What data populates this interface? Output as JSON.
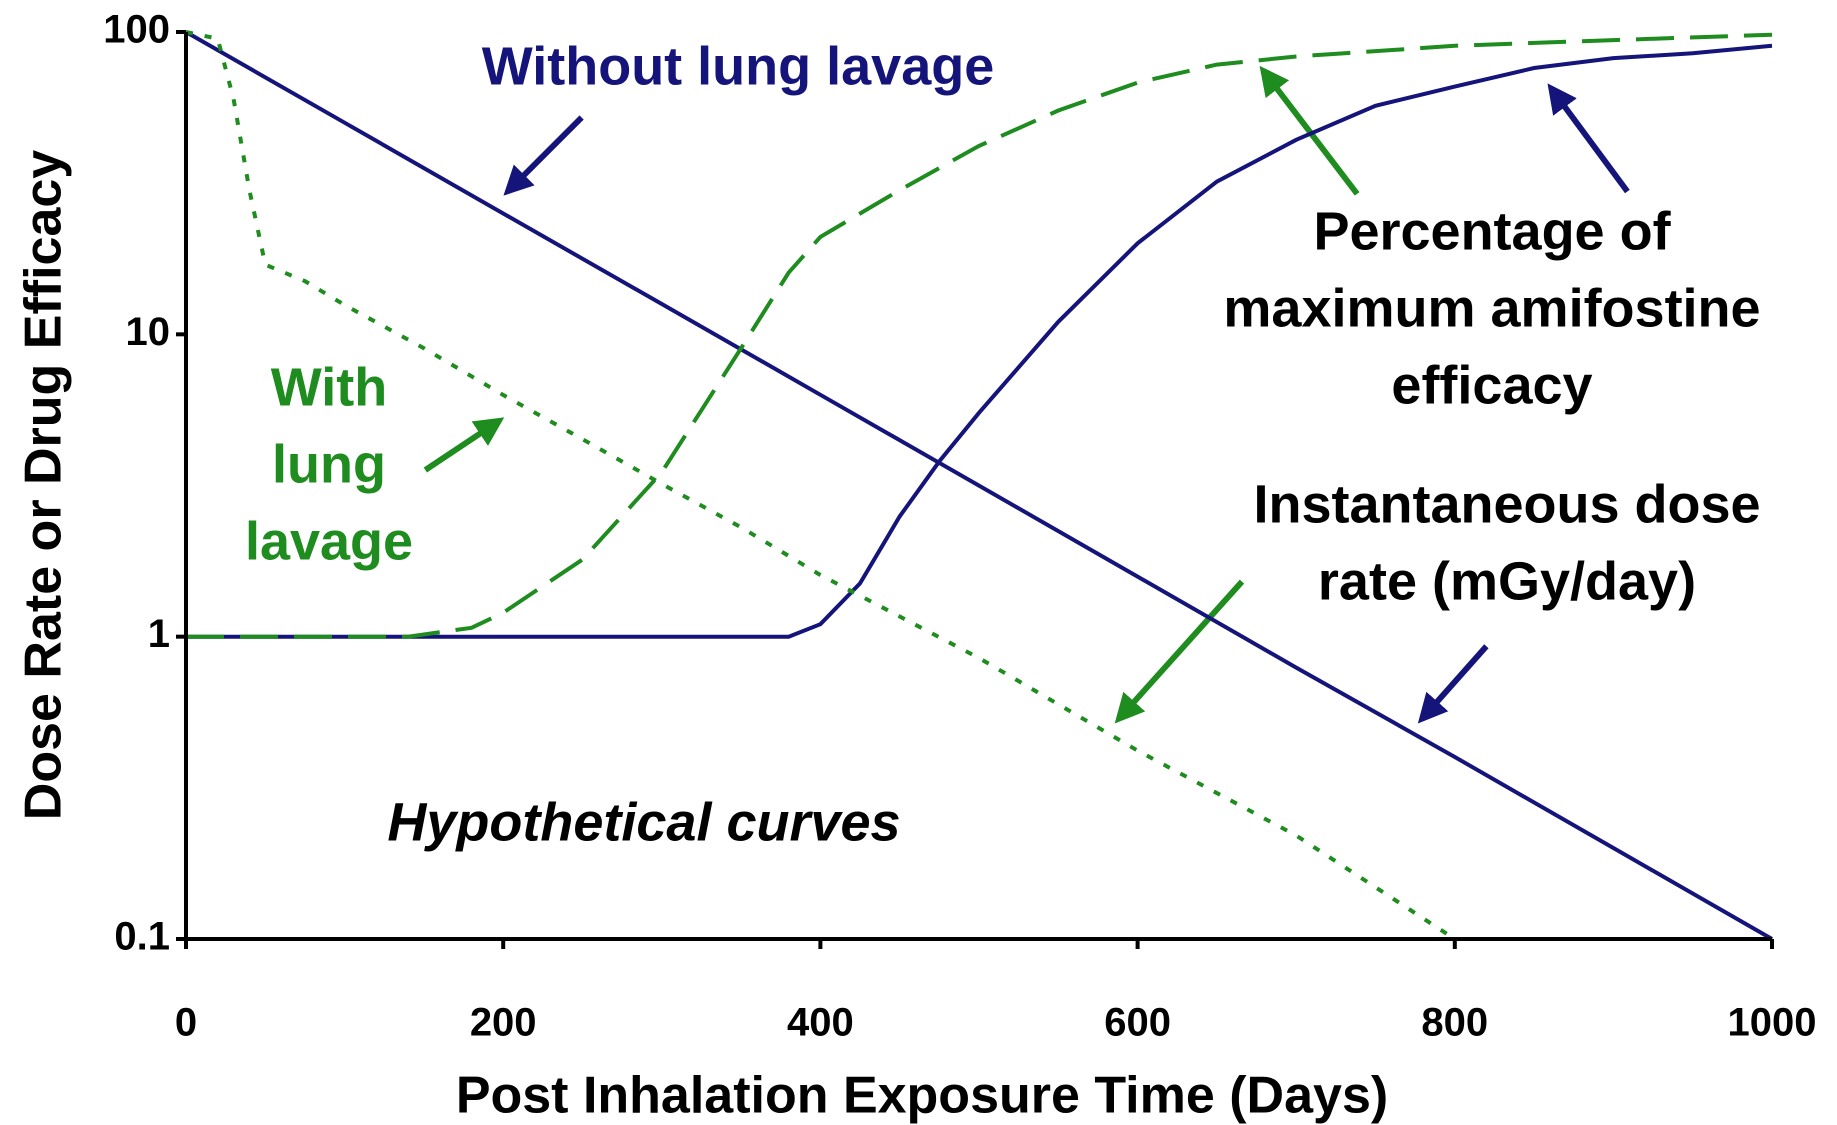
{
  "chart_data": {
    "type": "line",
    "xlabel": "Post Inhalation Exposure Time (Days)",
    "ylabel": "Dose Rate or Drug Efficacy",
    "xlim": [
      0,
      1000
    ],
    "xticks": [
      0,
      200,
      400,
      600,
      800,
      1000
    ],
    "ylim": [
      0.1,
      100
    ],
    "yticks": [
      0.1,
      1,
      10,
      100
    ],
    "yscale": "log",
    "grid": false,
    "series": [
      {
        "color": "#14147a",
        "dash": "solid",
        "x": [
          0,
          100,
          200,
          300,
          400,
          500,
          600,
          700,
          800,
          900,
          1000
        ],
        "values": [
          100,
          50.1,
          25.1,
          12.6,
          6.31,
          3.16,
          1.58,
          0.79,
          0.4,
          0.2,
          0.1
        ]
      },
      {
        "color": "#14147a",
        "dash": "solid",
        "x": [
          0,
          340,
          380,
          400,
          425,
          450,
          475,
          500,
          550,
          600,
          650,
          700,
          750,
          800,
          850,
          900,
          950,
          1000
        ],
        "values": [
          1,
          1,
          1,
          1.1,
          1.5,
          2.5,
          3.8,
          5.5,
          11,
          20,
          32,
          44,
          57,
          66,
          76,
          82,
          85,
          90
        ]
      },
      {
        "color": "#1e8c1e",
        "dash": "dotted",
        "x": [
          0,
          20,
          30,
          40,
          50,
          75,
          100,
          150,
          200,
          250,
          300,
          350,
          400,
          500,
          600,
          700,
          800
        ],
        "values": [
          100,
          95,
          60,
          30,
          17,
          15,
          12.5,
          9,
          6.3,
          4.5,
          3.2,
          2.3,
          1.6,
          0.85,
          0.42,
          0.22,
          0.1
        ]
      },
      {
        "color": "#1e8c1e",
        "dash": "dashed",
        "x": [
          0,
          140,
          180,
          200,
          250,
          300,
          350,
          380,
          400,
          450,
          500,
          550,
          600,
          650,
          700,
          800,
          900,
          1000
        ],
        "values": [
          1,
          1,
          1.07,
          1.2,
          1.8,
          3.5,
          9,
          16,
          21,
          30,
          42,
          55,
          68,
          78,
          83,
          90,
          94,
          98
        ]
      }
    ],
    "annotations": [
      {
        "lines": [
          "Without lung lavage"
        ],
        "color": "#14147a"
      },
      {
        "lines": [
          "With",
          "lung",
          "lavage"
        ],
        "color": "#1e8c1e"
      },
      {
        "lines": [
          "Percentage of",
          "maximum amifostine",
          "efficacy"
        ],
        "color": "#000000"
      },
      {
        "lines": [
          "Instantaneous dose",
          "rate (mGy/day)"
        ],
        "color": "#000000"
      },
      {
        "lines": [
          "Hypothetical curves"
        ],
        "color": "#000000",
        "italic": true
      }
    ]
  }
}
